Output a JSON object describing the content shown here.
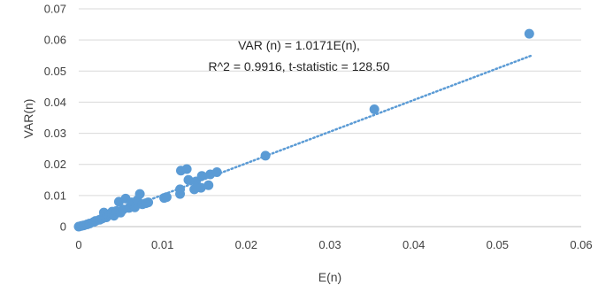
{
  "chart_data": {
    "type": "scatter",
    "title": "",
    "xlabel": "E(n)",
    "ylabel": "VAR(n)",
    "xlim": [
      0,
      0.06
    ],
    "ylim": [
      0,
      0.07
    ],
    "x_ticks": [
      0,
      0.01,
      0.02,
      0.03,
      0.04,
      0.05,
      0.06
    ],
    "y_ticks": [
      0,
      0.01,
      0.02,
      0.03,
      0.04,
      0.05,
      0.06,
      0.07
    ],
    "x_tick_labels": [
      "0",
      "0.01",
      "0.02",
      "0.03",
      "0.04",
      "0.05",
      "0.06"
    ],
    "y_tick_labels": [
      "0",
      "0.01",
      "0.02",
      "0.03",
      "0.04",
      "0.05",
      "0.06",
      "0.07"
    ],
    "grid": "horizontal",
    "legend": "none",
    "marker_color": "#5b9bd5",
    "trendline": {
      "type": "linear-through-origin",
      "slope": 1.0171,
      "x_range": [
        0,
        0.054
      ],
      "style": "dotted",
      "color": "#5b9bd5"
    },
    "annotation": {
      "line1": "VAR (n) = 1.0171E(n),",
      "line2": "R^2 = 0.9916, t-statistic = 128.50"
    },
    "points": [
      [
        0.0,
        0.0
      ],
      [
        0.0003,
        0.0002
      ],
      [
        0.0006,
        0.0004
      ],
      [
        0.001,
        0.0007
      ],
      [
        0.0013,
        0.001
      ],
      [
        0.0018,
        0.0015
      ],
      [
        0.002,
        0.0018
      ],
      [
        0.0025,
        0.0022
      ],
      [
        0.0028,
        0.0026
      ],
      [
        0.003,
        0.0045
      ],
      [
        0.0033,
        0.003
      ],
      [
        0.0037,
        0.0038
      ],
      [
        0.004,
        0.0048
      ],
      [
        0.0042,
        0.0035
      ],
      [
        0.0045,
        0.005
      ],
      [
        0.0048,
        0.008
      ],
      [
        0.005,
        0.0045
      ],
      [
        0.0053,
        0.0055
      ],
      [
        0.0056,
        0.009
      ],
      [
        0.006,
        0.006
      ],
      [
        0.0063,
        0.0078
      ],
      [
        0.0067,
        0.0062
      ],
      [
        0.007,
        0.0085
      ],
      [
        0.0073,
        0.0105
      ],
      [
        0.0076,
        0.0072
      ],
      [
        0.008,
        0.0075
      ],
      [
        0.0083,
        0.0078
      ],
      [
        0.0102,
        0.0092
      ],
      [
        0.0105,
        0.0095
      ],
      [
        0.0121,
        0.0105
      ],
      [
        0.0121,
        0.012
      ],
      [
        0.0122,
        0.018
      ],
      [
        0.0129,
        0.0185
      ],
      [
        0.0131,
        0.015
      ],
      [
        0.0138,
        0.012
      ],
      [
        0.014,
        0.0145
      ],
      [
        0.0146,
        0.0125
      ],
      [
        0.0147,
        0.0163
      ],
      [
        0.0155,
        0.0133
      ],
      [
        0.0157,
        0.0168
      ],
      [
        0.0165,
        0.0175
      ],
      [
        0.0223,
        0.0228
      ],
      [
        0.0353,
        0.0377
      ],
      [
        0.0538,
        0.062
      ]
    ]
  }
}
